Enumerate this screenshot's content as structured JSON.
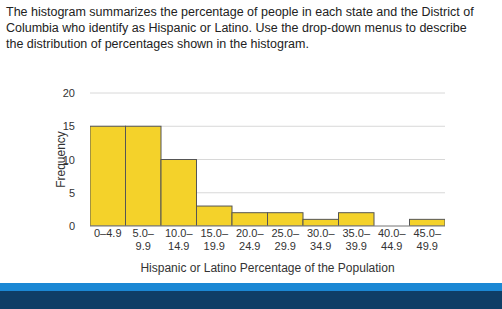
{
  "question": "The histogram summarizes the percentage of people in each state and the District of Columbia who identify as Hispanic or Latino. Use the drop-down menus to describe the distribution of percentages shown in the histogram.",
  "chart_data": {
    "type": "histogram",
    "x_label": "Hispanic or Latino Percentage of the Population",
    "y_label": "Frequency",
    "categories": [
      "0–4.9",
      "5.0–9.9",
      "10.0–14.9",
      "15.0–19.9",
      "20.0–24.9",
      "25.0–29.9",
      "30.0–34.9",
      "35.0–39.9",
      "40.0–44.9",
      "45.0–49.9"
    ],
    "bins": [
      0,
      5,
      10,
      15,
      20,
      25,
      30,
      35,
      40,
      45,
      50
    ],
    "values": [
      15,
      15,
      10,
      3,
      2,
      2,
      1,
      2,
      0,
      1
    ],
    "color": "#f4d22a",
    "ylim": [
      0,
      20
    ],
    "yticks": [
      0,
      5,
      10,
      15,
      20
    ],
    "grid": true
  }
}
